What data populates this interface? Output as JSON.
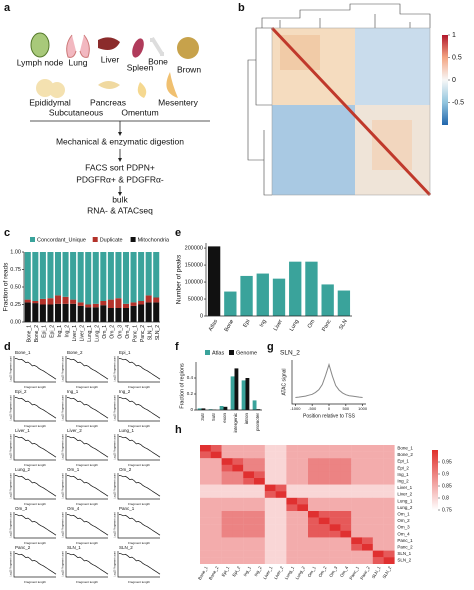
{
  "panel_a": {
    "letter": "a",
    "tissues": [
      "Lymph node",
      "Lung",
      "Liver",
      "Spleen",
      "Bone",
      "Brown",
      "Epididymal",
      "Pancreas",
      "Mesentery",
      "Subcutaneous",
      "Omentum"
    ],
    "steps": [
      "Mechanical & enzymatic digestion",
      "FACS sort PDPN+",
      "PDGFRα+ & PDGFRα-",
      "bulk",
      "RNA- & ATACseq"
    ]
  },
  "panel_b": {
    "letter": "b",
    "clim": [
      -1,
      1
    ],
    "colorbar_ticks": [
      1,
      0.5,
      0,
      -0.5
    ]
  },
  "chart_data": [
    {
      "type": "stacked-bar",
      "letter": "c",
      "ylabel": "Fraction of reads",
      "categories": [
        "Bone_1",
        "Bone_2",
        "Epi_1",
        "Epi_2",
        "Ing_1",
        "Ing_2",
        "Liver_1",
        "Liver_2",
        "Lung_1",
        "Lung_2",
        "Om_1",
        "Om_2",
        "Om_3",
        "Om_4",
        "Panc_1",
        "Panc_2",
        "SLN_1",
        "SLN_2"
      ],
      "series": [
        {
          "name": "Mitochondria",
          "color": "#111111",
          "values": [
            0.28,
            0.27,
            0.25,
            0.25,
            0.26,
            0.26,
            0.26,
            0.23,
            0.21,
            0.21,
            0.24,
            0.2,
            0.2,
            0.2,
            0.23,
            0.25,
            0.28,
            0.28
          ]
        },
        {
          "name": "Duplicate",
          "color": "#b3322a",
          "values": [
            0.04,
            0.03,
            0.08,
            0.09,
            0.12,
            0.1,
            0.06,
            0.05,
            0.04,
            0.05,
            0.06,
            0.12,
            0.14,
            0.06,
            0.05,
            0.05,
            0.1,
            0.07
          ]
        },
        {
          "name": "Concordant_Unique",
          "color": "#3aa39b",
          "values": [
            0.68,
            0.7,
            0.67,
            0.66,
            0.62,
            0.64,
            0.68,
            0.72,
            0.75,
            0.74,
            0.7,
            0.68,
            0.66,
            0.74,
            0.72,
            0.7,
            0.62,
            0.65
          ]
        }
      ],
      "legend_order": [
        2,
        1,
        0
      ],
      "ylim": [
        0,
        1
      ],
      "yticks": [
        {
          "value": 0,
          "label": "0.00"
        },
        {
          "value": 0.25,
          "label": "0.25"
        },
        {
          "value": 0.5,
          "label": "0.50"
        },
        {
          "value": 0.75,
          "label": "0.75"
        },
        {
          "value": 1,
          "label": "1.00"
        }
      ]
    },
    {
      "type": "bar",
      "letter": "e",
      "ylabel": "Number of peaks",
      "categories": [
        "Atlas",
        "Bone",
        "Epi",
        "Ing",
        "Liver",
        "Lung",
        "Om",
        "Panc",
        "SLN"
      ],
      "values": [
        205000,
        72000,
        118000,
        125000,
        110000,
        160000,
        160000,
        93000,
        75000
      ],
      "colors": [
        "#111111",
        "#3aa39b",
        "#3aa39b",
        "#3aa39b",
        "#3aa39b",
        "#3aa39b",
        "#3aa39b",
        "#3aa39b",
        "#3aa39b"
      ],
      "ylim": [
        0,
        215000
      ],
      "yticks": [
        0,
        50000,
        100000,
        150000,
        200000
      ]
    },
    {
      "type": "small-multiples",
      "letter": "d",
      "ylabel": "Log10 Fragment count",
      "xlabel": "Fragment length",
      "panels": [
        "Bone_1",
        "Bone_2",
        "Epi_1",
        "Epi_2",
        "Ing_1",
        "Ing_2",
        "Liver_1",
        "Liver_2",
        "Lung_1",
        "Lung_2",
        "Om_1",
        "Om_2",
        "Om_3",
        "Om_4",
        "Panc_1",
        "Panc_2",
        "SLN_1",
        "SLN_2"
      ],
      "profile": [
        5.0,
        4.9,
        4.7,
        4.8,
        4.5,
        4.1,
        4.2,
        3.9,
        3.4,
        3.5,
        3.3,
        2.9,
        2.6,
        2.4,
        2.1,
        1.8,
        1.5,
        1.2,
        0.9,
        0.6
      ],
      "ylim": [
        0,
        5.5
      ]
    },
    {
      "type": "grouped-bar",
      "letter": "f",
      "ylabel": "Fraction of regions",
      "categories": [
        "3utr",
        "5utr",
        "exon",
        "intergenic",
        "intron",
        "promoter"
      ],
      "series": [
        {
          "name": "Atlas",
          "color": "#3aa39b",
          "values": [
            0.02,
            0.01,
            0.05,
            0.42,
            0.37,
            0.12
          ]
        },
        {
          "name": "Genome",
          "color": "#111111",
          "values": [
            0.02,
            0.005,
            0.04,
            0.52,
            0.4,
            0.01
          ]
        }
      ],
      "ylim": [
        0,
        0.6
      ],
      "yticks": [
        0,
        0.2,
        0.4
      ]
    },
    {
      "type": "line",
      "letter": "g",
      "title": "SLN_2",
      "ylabel": "ATAC signal",
      "xlabel": "Position relative to TSS",
      "x": [
        -1000,
        -900,
        -800,
        -700,
        -600,
        -500,
        -400,
        -300,
        -200,
        -100,
        0,
        100,
        200,
        300,
        400,
        500,
        600,
        700,
        800,
        900,
        1000
      ],
      "values": [
        0.14,
        0.15,
        0.16,
        0.17,
        0.19,
        0.21,
        0.25,
        0.31,
        0.42,
        0.62,
        0.85,
        0.6,
        0.4,
        0.3,
        0.24,
        0.2,
        0.18,
        0.17,
        0.16,
        0.15,
        0.14
      ],
      "color": "#888888",
      "xlim": [
        -1100,
        1100
      ],
      "ylim": [
        0,
        0.95
      ],
      "xticks": [
        -1000,
        -500,
        0,
        500,
        1000
      ]
    },
    {
      "type": "heatmap",
      "letter": "h",
      "labels": [
        "Bone_1",
        "Bone_2",
        "Epi_1",
        "Epi_2",
        "Ing_1",
        "Ing_2",
        "Liver_1",
        "Liver_2",
        "Lung_1",
        "Lung_2",
        "Om_1",
        "Om_2",
        "Om_3",
        "Om_4",
        "Panc_1",
        "Panc_2",
        "SLN_1",
        "SLN_2"
      ],
      "matrix": [
        [
          1,
          0.95,
          0.85,
          0.85,
          0.85,
          0.85,
          0.8,
          0.8,
          0.85,
          0.85,
          0.85,
          0.85,
          0.85,
          0.85,
          0.85,
          0.85,
          0.85,
          0.85
        ],
        [
          0.95,
          1,
          0.85,
          0.85,
          0.85,
          0.85,
          0.8,
          0.8,
          0.85,
          0.85,
          0.85,
          0.85,
          0.85,
          0.85,
          0.85,
          0.85,
          0.85,
          0.85
        ],
        [
          0.85,
          0.85,
          1,
          0.95,
          0.9,
          0.9,
          0.8,
          0.8,
          0.85,
          0.85,
          0.9,
          0.9,
          0.9,
          0.9,
          0.85,
          0.85,
          0.85,
          0.85
        ],
        [
          0.85,
          0.85,
          0.95,
          1,
          0.9,
          0.9,
          0.8,
          0.8,
          0.85,
          0.85,
          0.9,
          0.9,
          0.9,
          0.9,
          0.85,
          0.85,
          0.85,
          0.85
        ],
        [
          0.85,
          0.85,
          0.9,
          0.9,
          1,
          0.95,
          0.8,
          0.8,
          0.85,
          0.85,
          0.9,
          0.9,
          0.9,
          0.9,
          0.85,
          0.85,
          0.85,
          0.85
        ],
        [
          0.85,
          0.85,
          0.9,
          0.9,
          0.95,
          1,
          0.8,
          0.8,
          0.85,
          0.85,
          0.9,
          0.9,
          0.9,
          0.9,
          0.85,
          0.85,
          0.85,
          0.85
        ],
        [
          0.8,
          0.8,
          0.8,
          0.8,
          0.8,
          0.8,
          1,
          0.95,
          0.8,
          0.8,
          0.8,
          0.8,
          0.8,
          0.8,
          0.8,
          0.8,
          0.8,
          0.8
        ],
        [
          0.8,
          0.8,
          0.8,
          0.8,
          0.8,
          0.8,
          0.95,
          1,
          0.8,
          0.8,
          0.8,
          0.8,
          0.8,
          0.8,
          0.8,
          0.8,
          0.8,
          0.8
        ],
        [
          0.85,
          0.85,
          0.85,
          0.85,
          0.85,
          0.85,
          0.8,
          0.8,
          1,
          0.95,
          0.85,
          0.85,
          0.85,
          0.85,
          0.85,
          0.85,
          0.85,
          0.85
        ],
        [
          0.85,
          0.85,
          0.85,
          0.85,
          0.85,
          0.85,
          0.8,
          0.8,
          0.95,
          1,
          0.85,
          0.85,
          0.85,
          0.85,
          0.85,
          0.85,
          0.85,
          0.85
        ],
        [
          0.85,
          0.85,
          0.9,
          0.9,
          0.9,
          0.9,
          0.8,
          0.8,
          0.85,
          0.85,
          1,
          0.95,
          0.95,
          0.95,
          0.85,
          0.85,
          0.85,
          0.85
        ],
        [
          0.85,
          0.85,
          0.9,
          0.9,
          0.9,
          0.9,
          0.8,
          0.8,
          0.85,
          0.85,
          0.95,
          1,
          0.95,
          0.95,
          0.85,
          0.85,
          0.85,
          0.85
        ],
        [
          0.85,
          0.85,
          0.9,
          0.9,
          0.9,
          0.9,
          0.8,
          0.8,
          0.85,
          0.85,
          0.95,
          0.95,
          1,
          0.95,
          0.85,
          0.85,
          0.85,
          0.85
        ],
        [
          0.85,
          0.85,
          0.9,
          0.9,
          0.9,
          0.9,
          0.8,
          0.8,
          0.85,
          0.85,
          0.95,
          0.95,
          0.95,
          1,
          0.85,
          0.85,
          0.85,
          0.85
        ],
        [
          0.85,
          0.85,
          0.85,
          0.85,
          0.85,
          0.85,
          0.8,
          0.8,
          0.85,
          0.85,
          0.85,
          0.85,
          0.85,
          0.85,
          1,
          0.95,
          0.85,
          0.85
        ],
        [
          0.85,
          0.85,
          0.85,
          0.85,
          0.85,
          0.85,
          0.8,
          0.8,
          0.85,
          0.85,
          0.85,
          0.85,
          0.85,
          0.85,
          0.95,
          1,
          0.85,
          0.85
        ],
        [
          0.85,
          0.85,
          0.85,
          0.85,
          0.85,
          0.85,
          0.8,
          0.8,
          0.85,
          0.85,
          0.85,
          0.85,
          0.85,
          0.85,
          0.85,
          0.85,
          1,
          0.95
        ],
        [
          0.85,
          0.85,
          0.85,
          0.85,
          0.85,
          0.85,
          0.8,
          0.8,
          0.85,
          0.85,
          0.85,
          0.85,
          0.85,
          0.85,
          0.85,
          0.85,
          0.95,
          1
        ]
      ],
      "clim": [
        0.75,
        1
      ],
      "colorbar_ticks": [
        0.95,
        0.9,
        0.85,
        0.8,
        0.75
      ]
    }
  ]
}
